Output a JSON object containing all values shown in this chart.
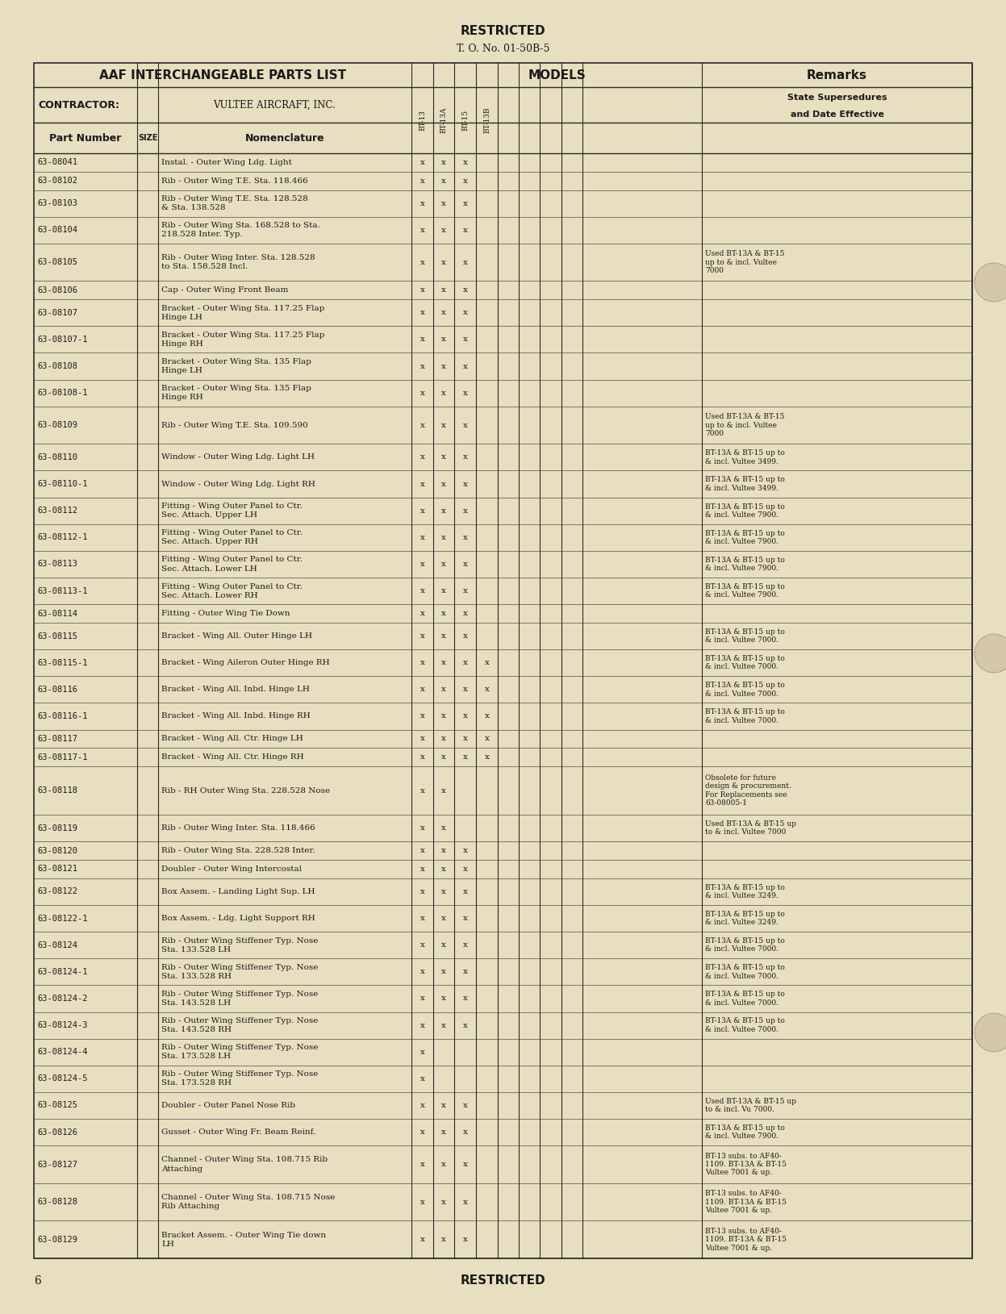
{
  "bg_color": "#e8dfc0",
  "page_top_text": "RESTRICTED",
  "page_top_subtext": "T. O. No. 01-50B-5",
  "header_title": "AAF INTERCHANGEABLE PARTS LIST",
  "models_header": "MODELS",
  "remarks_header": "Remarks",
  "contractor_label": "CONTRACTOR:",
  "contractor_value": "VULTEE AIRCRAFT, INC.",
  "state_supersedures": "State Supersedures",
  "and_date_effective": "and Date Effective",
  "page_number": "6",
  "page_bottom_text": "RESTRICTED",
  "text_color": "#1a1a1a",
  "line_color": "#2a2a2a",
  "rows": [
    [
      "63-08041",
      "",
      "Instal. - Outer Wing Ldg. Light",
      "x",
      "x",
      "x",
      "",
      ""
    ],
    [
      "63-08102",
      "",
      "Rib - Outer Wing T.E. Sta. 118.466",
      "x",
      "x",
      "x",
      "",
      ""
    ],
    [
      "63-08103",
      "",
      "Rib - Outer Wing T.E. Sta. 128.528\n& Sta. 138.528",
      "x",
      "x",
      "x",
      "",
      ""
    ],
    [
      "63-08104",
      "",
      "Rib - Outer Wing Sta. 168.528 to Sta.\n218.528 Inter. Typ.",
      "x",
      "x",
      "x",
      "",
      ""
    ],
    [
      "63-08105",
      "",
      "Rib - Outer Wing Inter. Sta. 128.528\nto Sta. 158.528 Incl.",
      "x",
      "x",
      "x",
      "",
      "Used BT-13A & BT-15\nup to & incl. Vultee\n7000"
    ],
    [
      "63-08106",
      "",
      "Cap - Outer Wing Front Beam",
      "x",
      "x",
      "x",
      "",
      ""
    ],
    [
      "63-08107",
      "",
      "Bracket - Outer Wing Sta. 117.25 Flap\nHinge LH",
      "x",
      "x",
      "x",
      "",
      ""
    ],
    [
      "63-08107-1",
      "",
      "Bracket - Outer Wing Sta. 117.25 Flap\nHinge RH",
      "x",
      "x",
      "x",
      "",
      ""
    ],
    [
      "63-08108",
      "",
      "Bracket - Outer Wing Sta. 135 Flap\nHinge LH",
      "x",
      "x",
      "x",
      "",
      ""
    ],
    [
      "63-08108-1",
      "",
      "Bracket - Outer Wing Sta. 135 Flap\nHinge RH",
      "x",
      "x",
      "x",
      "",
      ""
    ],
    [
      "63-08109",
      "",
      "Rib - Outer Wing T.E. Sta. 109.590",
      "x",
      "x",
      "x",
      "",
      "Used BT-13A & BT-15\nup to & incl. Vultee\n7000"
    ],
    [
      "63-08110",
      "",
      "Window - Outer Wing Ldg. Light LH",
      "x",
      "x",
      "x",
      "",
      "BT-13A & BT-15 up to\n& incl. Vultee 3499."
    ],
    [
      "63-08110-1",
      "",
      "Window - Outer Wing Ldg. Light RH",
      "x",
      "x",
      "x",
      "",
      "BT-13A & BT-15 up to\n& incl. Vultee 3499."
    ],
    [
      "63-08112",
      "",
      "Fitting - Wing Outer Panel to Ctr.\nSec. Attach. Upper LH",
      "x",
      "x",
      "x",
      "",
      "BT-13A & BT-15 up to\n& incl. Vultee 7900."
    ],
    [
      "63-08112-1",
      "",
      "Fitting - Wing Outer Panel to Ctr.\nSec. Attach. Upper RH",
      "x",
      "x",
      "x",
      "",
      "BT-13A & BT-15 up to\n& incl. Vultee 7900."
    ],
    [
      "63-08113",
      "",
      "Fitting - Wing Outer Panel to Ctr.\nSec. Attach. Lower LH",
      "x",
      "x",
      "x",
      "",
      "BT-13A & BT-15 up to\n& incl. Vultee 7900."
    ],
    [
      "63-08113-1",
      "",
      "Fitting - Wing Outer Panel to Ctr.\nSec. Attach. Lower RH",
      "x",
      "x",
      "x",
      "",
      "BT-13A & BT-15 up to\n& incl. Vultee 7900."
    ],
    [
      "63-08114",
      "",
      "Fitting - Outer Wing Tie Down",
      "x",
      "x",
      "x",
      "",
      ""
    ],
    [
      "63-08115",
      "",
      "Bracket - Wing All. Outer Hinge LH",
      "x",
      "x",
      "x",
      "",
      "BT-13A & BT-15 up to\n& incl. Vultee 7000."
    ],
    [
      "63-08115-1",
      "",
      "Bracket - Wing Aileron Outer Hinge RH",
      "x",
      "x",
      "x",
      "x",
      "BT-13A & BT-15 up to\n& incl. Vultee 7000."
    ],
    [
      "63-08116",
      "",
      "Bracket - Wing All. Inbd. Hinge LH",
      "x",
      "x",
      "x",
      "x",
      "BT-13A & BT-15 up to\n& incl. Vultee 7000."
    ],
    [
      "63-08116-1",
      "",
      "Bracket - Wing All. Inbd. Hinge RH",
      "x",
      "x",
      "x",
      "x",
      "BT-13A & BT-15 up to\n& incl. Vultee 7000."
    ],
    [
      "63-08117",
      "",
      "Bracket - Wing All. Ctr. Hinge LH",
      "x",
      "x",
      "x",
      "x",
      ""
    ],
    [
      "63-08117-1",
      "",
      "Bracket - Wing All. Ctr. Hinge RH",
      "x",
      "x",
      "x",
      "x",
      ""
    ],
    [
      "63-08118",
      "",
      "Rib - RH Outer Wing Sta. 228.528 Nose",
      "x",
      "x",
      "",
      "",
      "Obsolete for future\ndesign & procurement.\nFor Replacements see\n63-08005-1"
    ],
    [
      "63-08119",
      "",
      "Rib - Outer Wing Inter. Sta. 118.466",
      "x",
      "x",
      "",
      "",
      "Used BT-13A & BT-15 up\nto & incl. Vultee 7000"
    ],
    [
      "63-08120",
      "",
      "Rib - Outer Wing Sta. 228.528 Inter.",
      "x",
      "x",
      "x",
      "",
      ""
    ],
    [
      "63-08121",
      "",
      "Doubler - Outer Wing Intercostal",
      "x",
      "x",
      "x",
      "",
      ""
    ],
    [
      "63-08122",
      "",
      "Box Assem. - Landing Light Sup. LH",
      "x",
      "x",
      "x",
      "",
      "BT-13A & BT-15 up to\n& incl. Vultee 3249."
    ],
    [
      "63-08122-1",
      "",
      "Box Assem. - Ldg. Light Support RH",
      "x",
      "x",
      "x",
      "",
      "BT-13A & BT-15 up to\n& incl. Vultee 3249."
    ],
    [
      "63-08124",
      "",
      "Rib - Outer Wing Stiffener Typ. Nose\nSta. 133.528 LH",
      "x",
      "x",
      "x",
      "",
      "BT-13A & BT-15 up to\n& incl. Vultee 7000."
    ],
    [
      "63-08124-1",
      "",
      "Rib - Outer Wing Stiffener Typ. Nose\nSta. 133.528 RH",
      "x",
      "x",
      "x",
      "",
      "BT-13A & BT-15 up to\n& incl. Vultee 7000."
    ],
    [
      "63-08124-2",
      "",
      "Rib - Outer Wing Stiffener Typ. Nose\nSta. 143.528 LH",
      "x",
      "x",
      "x",
      "",
      "BT-13A & BT-15 up to\n& incl. Vultee 7000."
    ],
    [
      "63-08124-3",
      "",
      "Rib - Outer Wing Stiffener Typ. Nose\nSta. 143.528 RH",
      "x",
      "x",
      "x",
      "",
      "BT-13A & BT-15 up to\n& incl. Vultee 7000."
    ],
    [
      "63-08124-4",
      "",
      "Rib - Outer Wing Stiffener Typ. Nose\nSta. 173.528 LH",
      "x",
      "",
      "",
      "",
      ""
    ],
    [
      "63-08124-5",
      "",
      "Rib - Outer Wing Stiffener Typ. Nose\nSta. 173.528 RH",
      "x",
      "",
      "",
      "",
      ""
    ],
    [
      "63-08125",
      "",
      "Doubler - Outer Panel Nose Rib",
      "x",
      "x",
      "x",
      "",
      "Used BT-13A & BT-15 up\nto & incl. Vu 7000."
    ],
    [
      "63-08126",
      "",
      "Gusset - Outer Wing Fr. Beam Reinf.",
      "x",
      "x",
      "x",
      "",
      "BT-13A & BT-15 up to\n& incl. Vultee 7900."
    ],
    [
      "63-08127",
      "",
      "Channel - Outer Wing Sta. 108.715 Rib\nAttaching",
      "x",
      "x",
      "x",
      "",
      "BT-13 subs. to AF40-\n1109. BT-13A & BT-15\nVultee 7001 & up."
    ],
    [
      "63-08128",
      "",
      "Channel - Outer Wing Sta. 108.715 Nose\nRib Attaching",
      "x",
      "x",
      "x",
      "",
      "BT-13 subs. to AF40-\n1109. BT-13A & BT-15\nVultee 7001 & up."
    ],
    [
      "63-08129",
      "",
      "Bracket Assem. - Outer Wing Tie down\nLH",
      "x",
      "x",
      "x",
      "",
      "BT-13 subs. to AF40-\n1109. BT-13A & BT-15\nVultee 7001 & up."
    ]
  ]
}
